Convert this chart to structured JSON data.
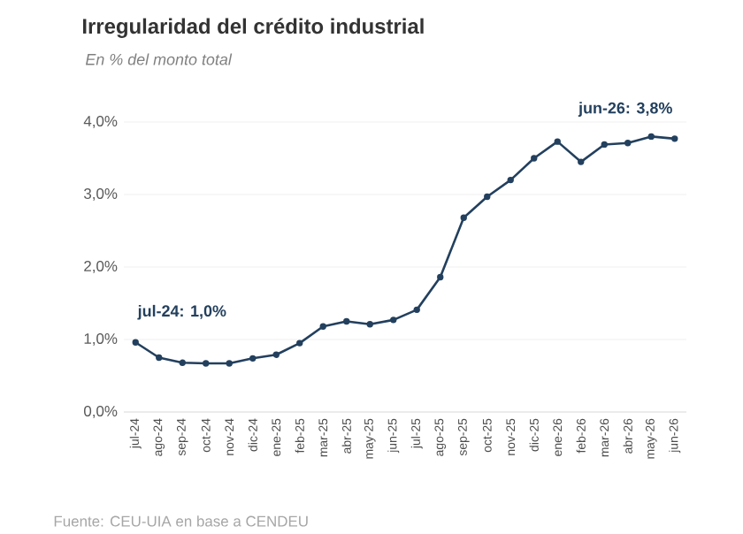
{
  "chart_data": {
    "type": "line",
    "title": "Irregularidad del crédito industrial",
    "subtitle": "En % del monto total",
    "categories": [
      "jul-24",
      "ago-24",
      "sep-24",
      "oct-24",
      "nov-24",
      "dic-24",
      "ene-25",
      "feb-25",
      "mar-25",
      "abr-25",
      "may-25",
      "jun-25",
      "jul-25",
      "ago-25",
      "sep-25",
      "oct-25",
      "nov-25",
      "dic-25",
      "ene-26",
      "feb-26",
      "mar-26",
      "abr-26",
      "may-26",
      "jun-26"
    ],
    "series": [
      {
        "color": "#23405e",
        "values": [
          0.96,
          0.75,
          0.68,
          0.67,
          0.67,
          0.74,
          0.79,
          0.95,
          1.18,
          1.25,
          1.21,
          1.27,
          1.41,
          1.86,
          2.68,
          2.97,
          3.2,
          3.5,
          3.73,
          3.45,
          3.69,
          3.71,
          3.8,
          3.77
        ]
      }
    ],
    "ylim": [
      0,
      4
    ],
    "yticks": [
      {
        "value": 0,
        "label": "0,0%"
      },
      {
        "value": 1,
        "label": "1,0%"
      },
      {
        "value": 2,
        "label": "2,0%"
      },
      {
        "value": 3,
        "label": "3,0%"
      },
      {
        "value": 4,
        "label": "4,0%"
      }
    ],
    "grid": "y",
    "marker": "circle",
    "line_style": "solid",
    "annotations": [
      {
        "text": "jul-24: 1,0%",
        "x": "jul-24",
        "y": 1.0
      },
      {
        "text": "jun-26: 3,8%",
        "x": "jun-26",
        "y": 3.8
      },
      "Fuente: CEU-UIA en base a CENDEU"
    ]
  }
}
